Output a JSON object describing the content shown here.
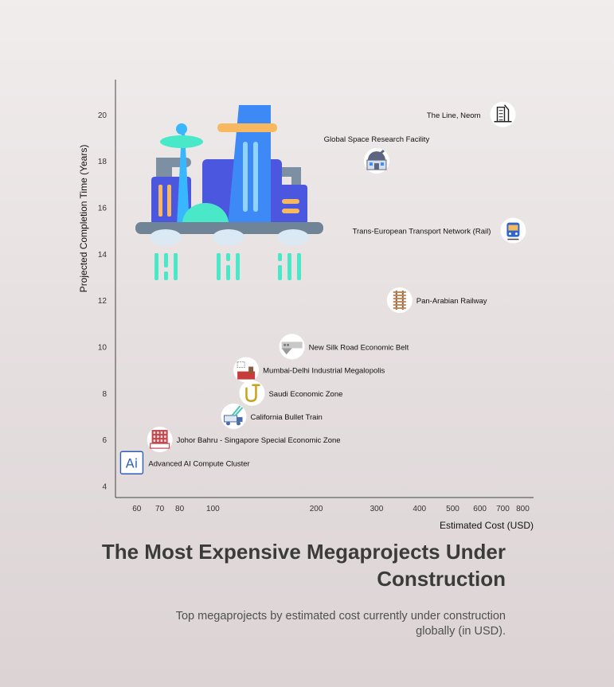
{
  "title": "The Most Expensive Megaprojects Under Construction",
  "subtitle": "Top megaprojects by estimated cost currently under construction globally (in USD).",
  "chart_data": {
    "type": "scatter",
    "xlabel": "Estimated Cost (USD)",
    "ylabel": "Projected Completion Time (Years)",
    "xscale": "log",
    "xlim": [
      52,
      860
    ],
    "ylim": [
      3.5,
      21.5
    ],
    "xticks": [
      60,
      70,
      80,
      100,
      200,
      300,
      400,
      500,
      600,
      700,
      800
    ],
    "yticks": [
      4,
      6,
      8,
      10,
      12,
      14,
      16,
      18,
      20
    ],
    "grid": false,
    "points": [
      {
        "label": "The Line, Neom",
        "x": 700,
        "y": 20,
        "icon": "skyscraper-icon",
        "label_side": "left"
      },
      {
        "label": "Global Space Research Facility",
        "x": 300,
        "y": 18,
        "icon": "observatory-icon",
        "label_side": "top"
      },
      {
        "label": "Trans-European Transport Network (Rail)",
        "x": 750,
        "y": 15,
        "icon": "train-icon",
        "label_side": "left"
      },
      {
        "label": "Pan-Arabian Railway",
        "x": 350,
        "y": 12,
        "icon": "railway-icon",
        "label_side": "right"
      },
      {
        "label": "New Silk Road Economic Belt",
        "x": 170,
        "y": 10,
        "icon": "silk-road-icon",
        "label_side": "right"
      },
      {
        "label": "Mumbai-Delhi Industrial Megalopolis",
        "x": 125,
        "y": 9,
        "icon": "factory-icon",
        "label_side": "right"
      },
      {
        "label": "Saudi Economic Zone",
        "x": 130,
        "y": 8,
        "icon": "arabic-letter-icon",
        "label_side": "right"
      },
      {
        "label": "California Bullet Train",
        "x": 115,
        "y": 7,
        "icon": "construction-truck-icon",
        "label_side": "right"
      },
      {
        "label": "Johor Bahru - Singapore Special Economic Zone",
        "x": 70,
        "y": 6,
        "icon": "building-icon",
        "label_side": "right"
      },
      {
        "label": "Advanced AI Compute Cluster",
        "x": 58,
        "y": 5,
        "icon": "ai-icon",
        "label_side": "right"
      }
    ]
  }
}
